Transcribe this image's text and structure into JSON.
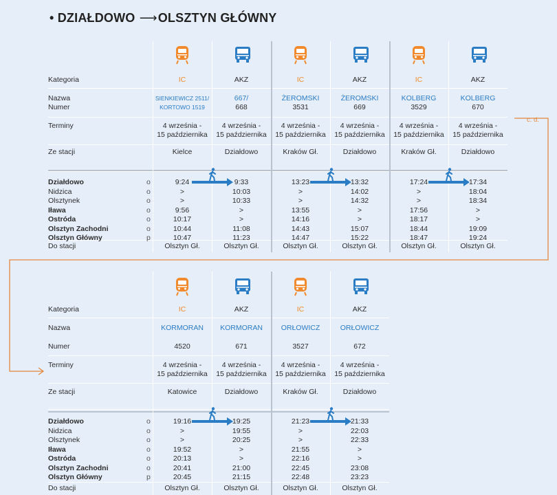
{
  "title": {
    "from": "DZIAŁDOWO",
    "to": "OLSZTYN GŁÓWNY",
    "bullet": "•",
    "arrow": "⟶"
  },
  "labels": {
    "kategoria": "Kategoria",
    "nazwa": "Nazwa",
    "numer": "Numer",
    "terminy": "Terminy",
    "ze_stacji": "Ze stacji",
    "do_stacji": "Do stacji"
  },
  "stations": [
    {
      "name": "Działdowo",
      "bold": true,
      "mark": "o"
    },
    {
      "name": "Nidzica",
      "bold": false,
      "mark": "o"
    },
    {
      "name": "Olsztynek",
      "bold": false,
      "mark": "o"
    },
    {
      "name": "Iława",
      "bold": true,
      "mark": "o"
    },
    {
      "name": "Ostróda",
      "bold": true,
      "mark": "o"
    },
    {
      "name": "Olsztyn Zachodni",
      "bold": true,
      "mark": "o"
    },
    {
      "name": "Olsztyn Główny",
      "bold": true,
      "mark": "p"
    }
  ],
  "continued": "c. d.",
  "tables": [
    {
      "columns": [
        {
          "category": "IC",
          "kind": "train",
          "name1": "SIENKIEWICZ 2511/",
          "name2": "KORTOWO 1519",
          "number": "",
          "dates1": "4 września -",
          "dates2": "15 października",
          "from": "Kielce",
          "times": [
            "9:24",
            ">",
            ">",
            "9:56",
            "10:17",
            "10:44",
            "10:47"
          ],
          "to": "Olsztyn Gł."
        },
        {
          "category": "AKZ",
          "kind": "bus",
          "name1": "667/",
          "name2": "668",
          "number": "",
          "dates1": "4 września -",
          "dates2": "15 października",
          "from": "Działdowo",
          "times": [
            "9:33",
            "10:03",
            "10:33",
            ">",
            ">",
            "11:08",
            "11:23"
          ],
          "to": "Olsztyn Gł."
        },
        {
          "category": "IC",
          "kind": "train",
          "name1": "ŻEROMSKI",
          "name2": "3531",
          "number": "",
          "dates1": "4 września -",
          "dates2": "15 października",
          "from": "Kraków Gł.",
          "times": [
            "13:23",
            ">",
            ">",
            "13:55",
            "14:16",
            "14:43",
            "14:47"
          ],
          "to": "Olsztyn Gł."
        },
        {
          "category": "AKZ",
          "kind": "bus",
          "name1": "ŻEROMSKI",
          "name2": "669",
          "number": "",
          "dates1": "4 września -",
          "dates2": "15 października",
          "from": "Działdowo",
          "times": [
            "13:32",
            "14:02",
            "14:32",
            ">",
            ">",
            "15:07",
            "15:22"
          ],
          "to": "Olsztyn Gł."
        },
        {
          "category": "IC",
          "kind": "train",
          "name1": "KOLBERG",
          "name2": "3529",
          "number": "",
          "dates1": "4 września -",
          "dates2": "15 października",
          "from": "Kraków Gł.",
          "times": [
            "17:24",
            ">",
            ">",
            "17:56",
            "18:17",
            "18:44",
            "18:47"
          ],
          "to": "Olsztyn Gł."
        },
        {
          "category": "AKZ",
          "kind": "bus",
          "name1": "KOLBERG",
          "name2": "670",
          "number": "",
          "dates1": "4 września -",
          "dates2": "15 października",
          "from": "Działdowo",
          "times": [
            "17:34",
            "18:04",
            "18:34",
            ">",
            ">",
            "19:09",
            "19:24"
          ],
          "to": "Olsztyn Gł."
        }
      ]
    },
    {
      "columns": [
        {
          "category": "IC",
          "kind": "train",
          "name1": "KORMORAN",
          "name2": "",
          "number": "4520",
          "dates1": "4 września -",
          "dates2": "15 października",
          "from": "Katowice",
          "times": [
            "19:16",
            ">",
            ">",
            "19:52",
            "20:13",
            "20:41",
            "20:45"
          ],
          "to": "Olsztyn Gł."
        },
        {
          "category": "AKZ",
          "kind": "bus",
          "name1": "KORMORAN",
          "name2": "",
          "number": "671",
          "dates1": "4 września -",
          "dates2": "15 października",
          "from": "Działdowo",
          "times": [
            "19:25",
            "19:55",
            "20:25",
            ">",
            ">",
            "21:00",
            "21:15"
          ],
          "to": "Olsztyn Gł."
        },
        {
          "category": "IC",
          "kind": "train",
          "name1": "ORŁOWICZ",
          "name2": "",
          "number": "3527",
          "dates1": "4 września -",
          "dates2": "15 października",
          "from": "Kraków Gł.",
          "times": [
            "21:23",
            ">",
            ">",
            "21:55",
            "22:16",
            "22:45",
            "22:48"
          ],
          "to": "Olsztyn Gł."
        },
        {
          "category": "AKZ",
          "kind": "bus",
          "name1": "ORŁOWICZ",
          "name2": "",
          "number": "672",
          "dates1": "4 września -",
          "dates2": "15 października",
          "from": "Działdowo",
          "times": [
            "21:33",
            "22:03",
            "22:33",
            ">",
            ">",
            "23:08",
            "23:23"
          ],
          "to": "Olsztyn Gł."
        }
      ]
    }
  ],
  "colors": {
    "train": "#f08a2c",
    "bus": "#2a7cc4",
    "connector": "#e3873c",
    "background": "#e6eef9"
  },
  "icons": {
    "train": "train-icon",
    "bus": "bus-icon",
    "walk": "walking-person-icon"
  }
}
